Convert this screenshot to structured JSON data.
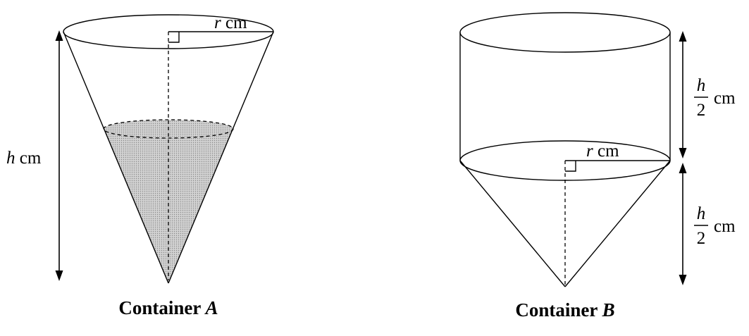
{
  "container_a": {
    "caption_word": "Container",
    "caption_letter": "A",
    "radius_var": "r",
    "radius_unit": "cm",
    "height_var": "h",
    "height_unit": "cm"
  },
  "container_b": {
    "caption_word": "Container",
    "caption_letter": "B",
    "radius_var": "r",
    "radius_unit": "cm",
    "upper_height_num": "h",
    "upper_height_den": "2",
    "upper_height_unit": "cm",
    "lower_height_num": "h",
    "lower_height_den": "2",
    "lower_height_unit": "cm"
  },
  "colors": {
    "water_fill": "#c8c8c8",
    "line": "#000000"
  }
}
